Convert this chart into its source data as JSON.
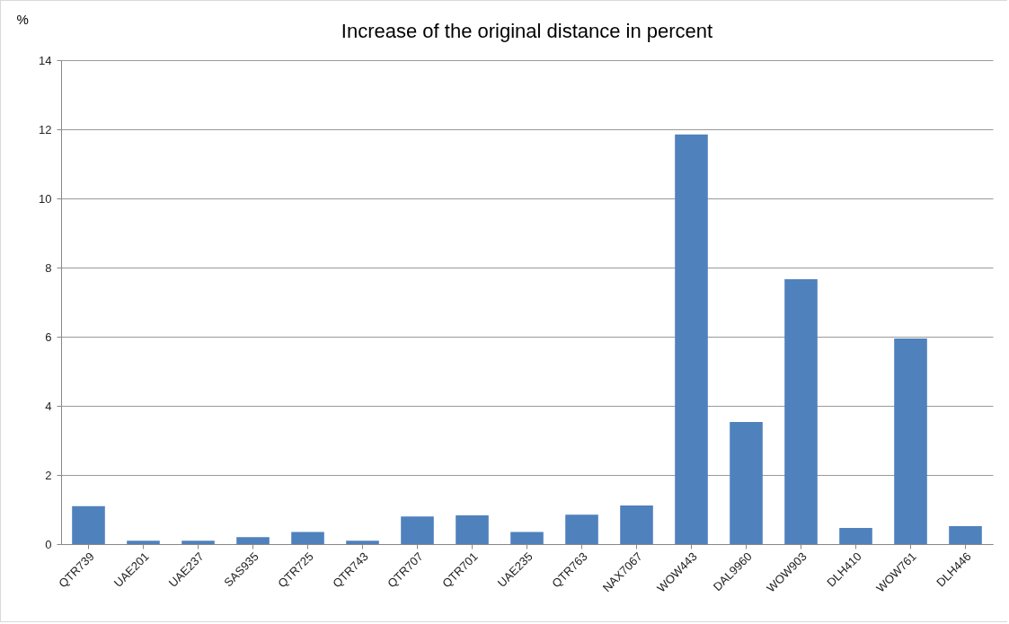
{
  "chart_data": {
    "type": "bar",
    "title": "Increase of the original distance in percent",
    "ylabel": "%",
    "categories": [
      "QTR739",
      "UAE201",
      "UAE237",
      "SAS935",
      "QTR725",
      "QTR743",
      "QTR707",
      "QTR701",
      "UAE235",
      "QTR763",
      "NAX7067",
      "WOW443",
      "DAL9960",
      "WOW903",
      "DLH410",
      "WOW761",
      "DLH446"
    ],
    "values": [
      1.1,
      0.1,
      0.1,
      0.2,
      0.35,
      0.1,
      0.8,
      0.83,
      0.35,
      0.85,
      1.12,
      11.85,
      3.53,
      7.66,
      0.47,
      5.95,
      0.52
    ],
    "color": "#4f81bd",
    "ylim": [
      0,
      14
    ],
    "yticks": [
      0,
      2,
      4,
      6,
      8,
      10,
      12,
      14
    ],
    "grid": "y",
    "legend": false
  }
}
